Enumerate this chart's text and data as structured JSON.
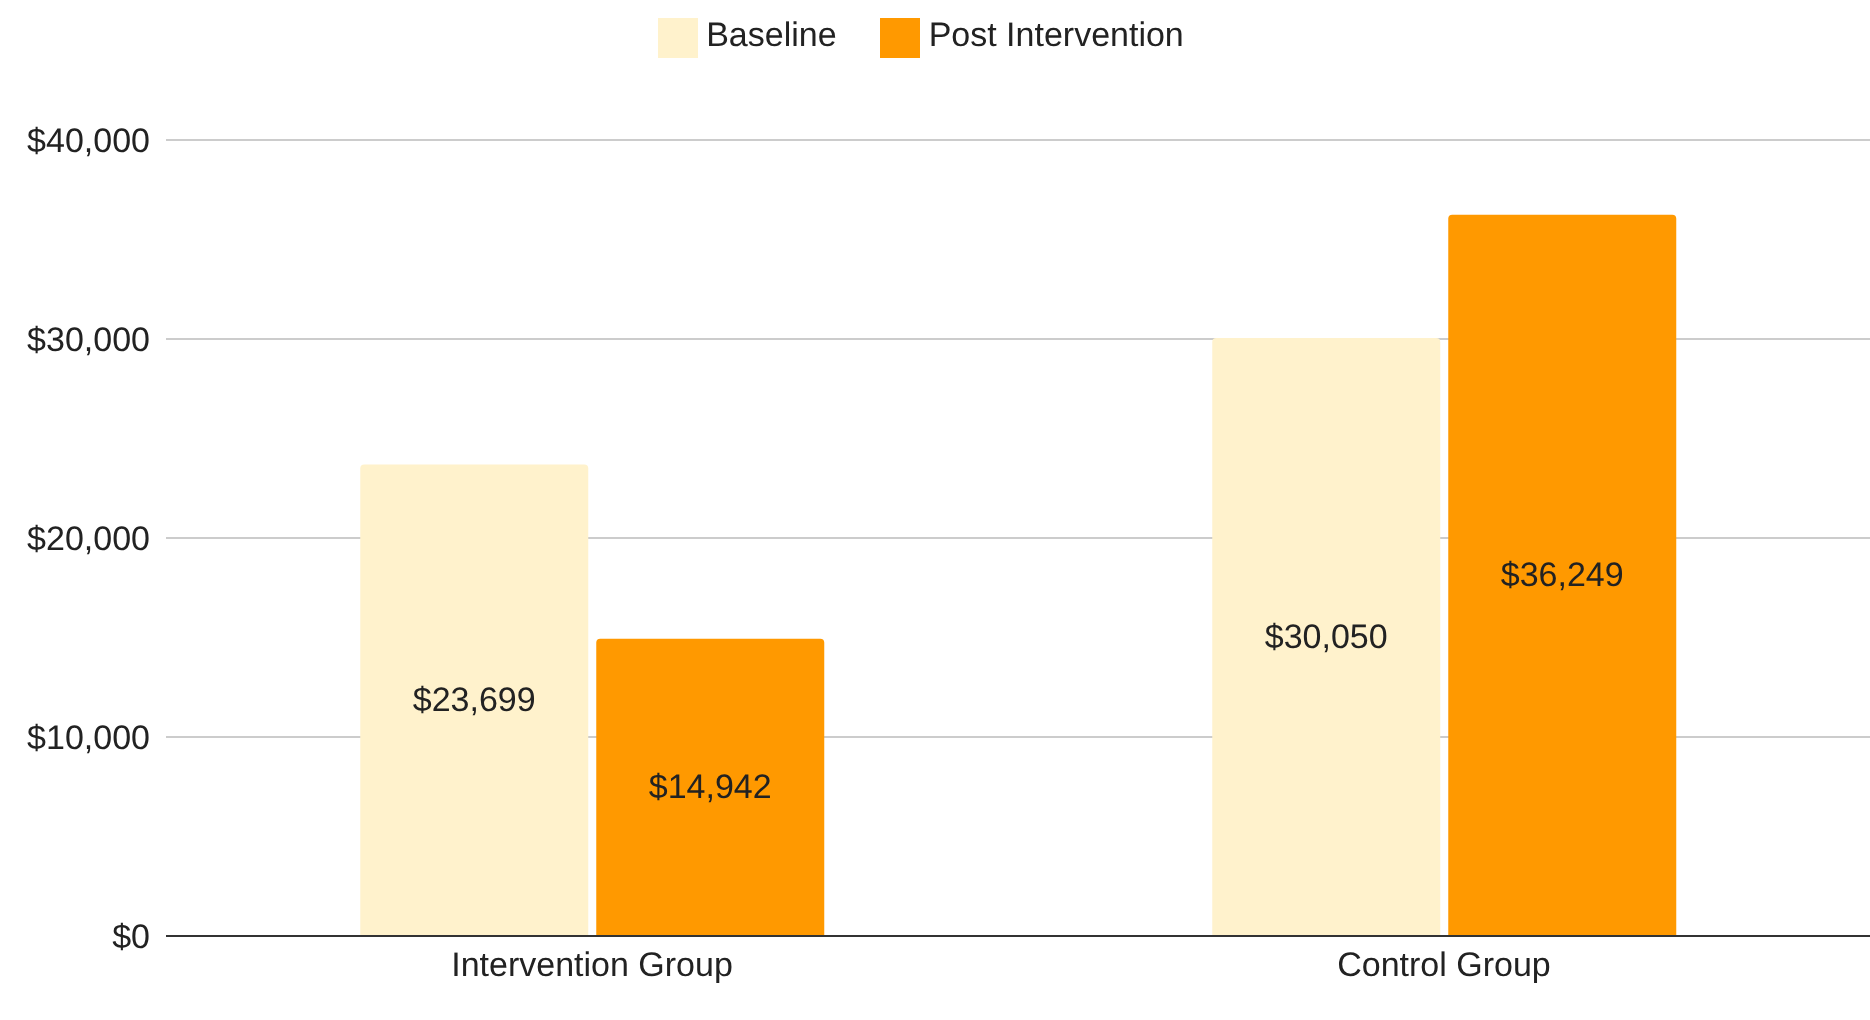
{
  "chart_data": {
    "type": "bar",
    "categories": [
      "Intervention Group",
      "Control Group"
    ],
    "series": [
      {
        "name": "Baseline",
        "color": "#fff2cc",
        "values": [
          23699,
          30050
        ],
        "value_labels": [
          "$23,699",
          "$30,050"
        ]
      },
      {
        "name": "Post Intervention",
        "color": "#ff9900",
        "values": [
          14942,
          36249
        ],
        "value_labels": [
          "$14,942",
          "$36,249"
        ]
      }
    ],
    "ylim": [
      0,
      40000
    ],
    "yticks": [
      {
        "value": 0,
        "label": "$0"
      },
      {
        "value": 10000,
        "label": "$10,000"
      },
      {
        "value": 20000,
        "label": "$20,000"
      },
      {
        "value": 30000,
        "label": "$30,000"
      },
      {
        "value": 40000,
        "label": "$40,000"
      }
    ],
    "grid": "y",
    "legend": "top"
  }
}
